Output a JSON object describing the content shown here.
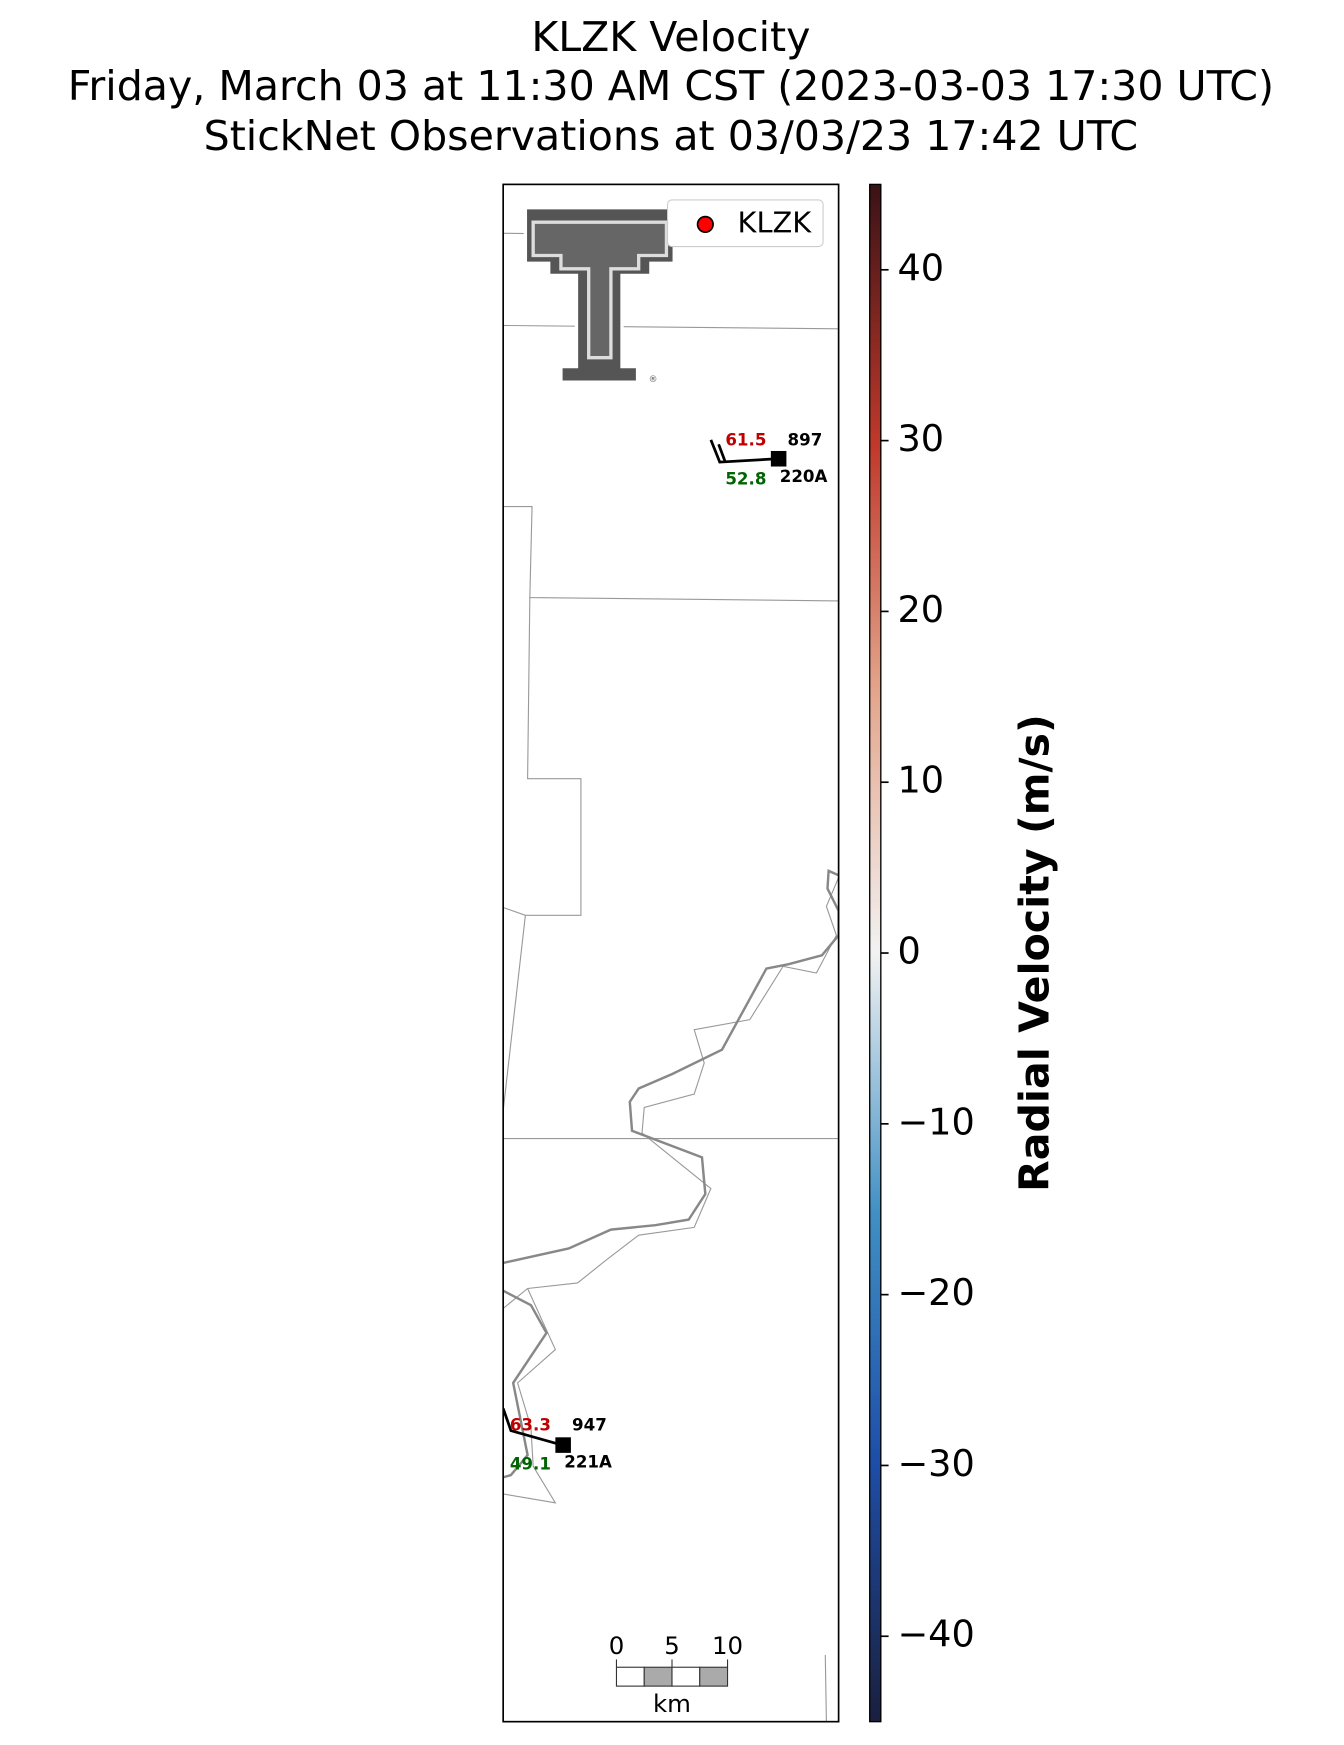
{
  "chart_data": {
    "type": "radar-map",
    "title_lines": [
      "KLZK Velocity",
      "Friday, March 03 at 11:30 AM CST (2023-03-03 17:30 UTC)",
      "StickNet Observations at 03/03/23 17:42 UTC"
    ],
    "legend": {
      "name": "KLZK",
      "color": "#ff0000",
      "corner": "upper right"
    },
    "colorbar": {
      "label": "Radial Velocity (m/s)",
      "clim": [
        -45,
        45
      ],
      "ticks": [
        {
          "value": -40,
          "label": "−40"
        },
        {
          "value": -30,
          "label": "−30"
        },
        {
          "value": -20,
          "label": "−20"
        },
        {
          "value": -10,
          "label": "−10"
        },
        0,
        10,
        20,
        30,
        40
      ]
    },
    "stations": [
      {
        "id": "220A",
        "temperature": 61.5,
        "dewpoint": 52.8,
        "pressure": 897
      },
      {
        "id": "221A",
        "temperature": 63.3,
        "dewpoint": 49.1,
        "pressure": 947
      }
    ],
    "scale_bar": {
      "ticks": [
        0,
        5,
        10
      ],
      "unit": "km"
    }
  }
}
